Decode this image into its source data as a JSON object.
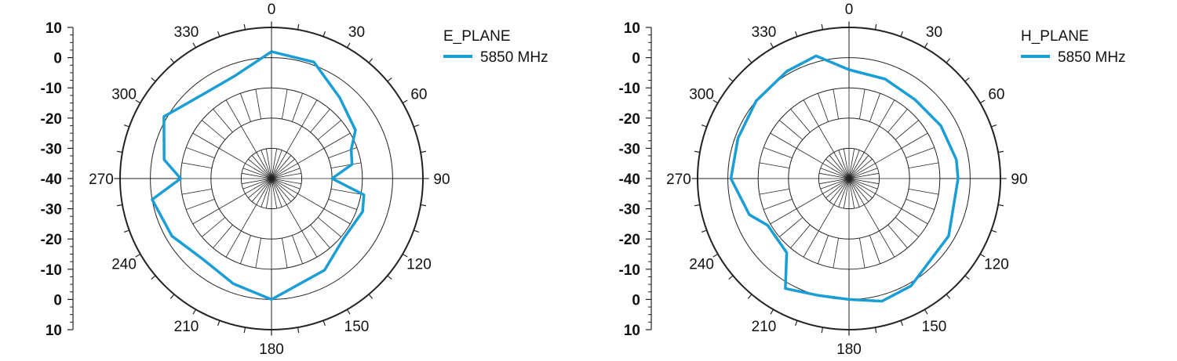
{
  "chart_data": [
    {
      "type": "polar-line",
      "legend_title": "E_PLANE",
      "series": [
        {
          "name": "5850 MHz",
          "color": "#1a9ed6",
          "points": [
            {
              "angle": 0,
              "value": 2
            },
            {
              "angle": 20,
              "value": 1
            },
            {
              "angle": 40,
              "value": -5
            },
            {
              "angle": 60,
              "value": -8
            },
            {
              "angle": 70,
              "value": -12
            },
            {
              "angle": 80,
              "value": -13
            },
            {
              "angle": 90,
              "value": -20
            },
            {
              "angle": 100,
              "value": -9
            },
            {
              "angle": 110,
              "value": -8
            },
            {
              "angle": 130,
              "value": -9
            },
            {
              "angle": 150,
              "value": -5
            },
            {
              "angle": 180,
              "value": 0
            },
            {
              "angle": 200,
              "value": -3
            },
            {
              "angle": 220,
              "value": -5
            },
            {
              "angle": 240,
              "value": -2
            },
            {
              "angle": 260,
              "value": 0
            },
            {
              "angle": 270,
              "value": -10
            },
            {
              "angle": 280,
              "value": -4
            },
            {
              "angle": 300,
              "value": 1
            },
            {
              "angle": 320,
              "value": -4
            },
            {
              "angle": 340,
              "value": -4
            },
            {
              "angle": 360,
              "value": 2
            }
          ]
        }
      ],
      "angle_labels": [
        "0",
        "30",
        "60",
        "90",
        "120",
        "150",
        "180",
        "210",
        "240",
        "270",
        "300",
        "330"
      ],
      "scale_labels": [
        "10",
        "0",
        "-10",
        "-20",
        "-30",
        "-40",
        "-30",
        "-20",
        "-10",
        "0",
        "10"
      ],
      "r_range": [
        -40,
        10
      ]
    },
    {
      "type": "polar-line",
      "legend_title": "H_PLANE",
      "series": [
        {
          "name": "5850 MHz",
          "color": "#1a9ed6",
          "points": [
            {
              "angle": 0,
              "value": -4
            },
            {
              "angle": 20,
              "value": -5
            },
            {
              "angle": 40,
              "value": -6
            },
            {
              "angle": 60,
              "value": -5
            },
            {
              "angle": 80,
              "value": -4
            },
            {
              "angle": 90,
              "value": -4
            },
            {
              "angle": 120,
              "value": -2
            },
            {
              "angle": 150,
              "value": 1
            },
            {
              "angle": 165,
              "value": 2
            },
            {
              "angle": 180,
              "value": 0
            },
            {
              "angle": 195,
              "value": 0
            },
            {
              "angle": 210,
              "value": 2
            },
            {
              "angle": 220,
              "value": -8
            },
            {
              "angle": 240,
              "value": -9
            },
            {
              "angle": 250,
              "value": -5
            },
            {
              "angle": 270,
              "value": -1
            },
            {
              "angle": 290,
              "value": -1
            },
            {
              "angle": 310,
              "value": 0
            },
            {
              "angle": 330,
              "value": 1
            },
            {
              "angle": 345,
              "value": 2
            },
            {
              "angle": 360,
              "value": -4
            }
          ]
        }
      ],
      "angle_labels": [
        "0",
        "30",
        "60",
        "90",
        "120",
        "150",
        "180",
        "210",
        "240",
        "270",
        "300",
        "330"
      ],
      "scale_labels": [
        "10",
        "0",
        "-10",
        "-20",
        "-30",
        "-40",
        "-30",
        "-20",
        "-10",
        "0",
        "10"
      ],
      "r_range": [
        -40,
        10
      ]
    }
  ]
}
